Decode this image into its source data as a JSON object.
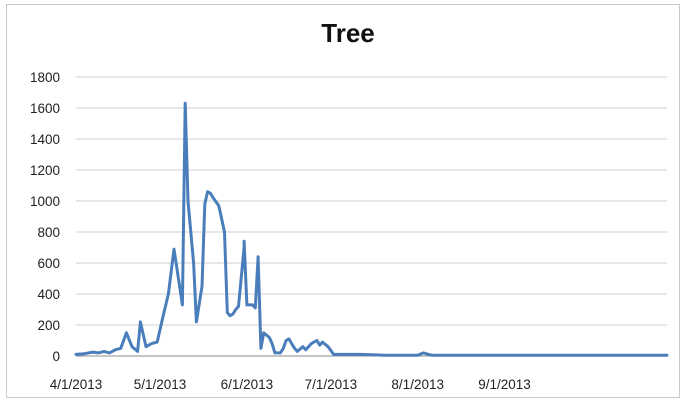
{
  "chart_data": {
    "type": "line",
    "title": "Tree",
    "xlabel": "",
    "ylabel": "",
    "ylim": [
      0,
      1800
    ],
    "yticks": [
      0,
      200,
      400,
      600,
      800,
      1000,
      1200,
      1400,
      1600,
      1800
    ],
    "ytick_labels": [
      "0",
      "200",
      "400",
      "600",
      "800",
      "1000",
      "1200",
      "1400",
      "1600",
      "1800"
    ],
    "xlim": [
      "2013-04-01",
      "2013-10-29"
    ],
    "xticks": [
      "2013-04-01",
      "2013-05-01",
      "2013-06-01",
      "2013-07-01",
      "2013-08-01",
      "2013-09-01"
    ],
    "xtick_labels": [
      "4/1/2013",
      "5/1/2013",
      "6/1/2013",
      "7/1/2013",
      "8/1/2013",
      "9/1/2013"
    ],
    "grid": true,
    "legend": "none",
    "colors": {
      "series": "#4a7ebb",
      "grid": "#cfcfcf",
      "axis": "#8c8c8c"
    },
    "series": [
      {
        "x": [
          "2013-04-01",
          "2013-04-04",
          "2013-04-07",
          "2013-04-09",
          "2013-04-11",
          "2013-04-13",
          "2013-04-15",
          "2013-04-17",
          "2013-04-19",
          "2013-04-21",
          "2013-04-23",
          "2013-04-24",
          "2013-04-26",
          "2013-04-28",
          "2013-04-30",
          "2013-05-02",
          "2013-05-04",
          "2013-05-06",
          "2013-05-09",
          "2013-05-10",
          "2013-05-11",
          "2013-05-12",
          "2013-05-13",
          "2013-05-14",
          "2013-05-16",
          "2013-05-17",
          "2013-05-18",
          "2013-05-19",
          "2013-05-20",
          "2013-05-22",
          "2013-05-24",
          "2013-05-25",
          "2013-05-26",
          "2013-05-27",
          "2013-05-28",
          "2013-05-29",
          "2013-05-31",
          "2013-05-31",
          "2013-06-01",
          "2013-06-03",
          "2013-06-04",
          "2013-06-05",
          "2013-06-06",
          "2013-06-07",
          "2013-06-09",
          "2013-06-10",
          "2013-06-11",
          "2013-06-13",
          "2013-06-14",
          "2013-06-15",
          "2013-06-16",
          "2013-06-17",
          "2013-06-18",
          "2013-06-19",
          "2013-06-21",
          "2013-06-22",
          "2013-06-23",
          "2013-06-24",
          "2013-06-26",
          "2013-06-27",
          "2013-06-28",
          "2013-06-30",
          "2013-07-02",
          "2013-07-06",
          "2013-07-12",
          "2013-07-20",
          "2013-08-01",
          "2013-08-03",
          "2013-08-06",
          "2013-08-20",
          "2013-09-10",
          "2013-10-29"
        ],
        "values": [
          10,
          15,
          25,
          20,
          30,
          20,
          40,
          50,
          150,
          60,
          30,
          220,
          60,
          80,
          90,
          250,
          400,
          690,
          330,
          1630,
          1000,
          800,
          600,
          220,
          450,
          980,
          1060,
          1050,
          1020,
          970,
          800,
          280,
          260,
          270,
          300,
          320,
          700,
          740,
          330,
          330,
          310,
          640,
          50,
          150,
          120,
          80,
          20,
          20,
          50,
          100,
          110,
          80,
          50,
          30,
          60,
          40,
          60,
          80,
          100,
          70,
          90,
          60,
          10,
          10,
          10,
          5,
          5,
          20,
          5,
          5,
          5,
          5
        ]
      }
    ]
  }
}
